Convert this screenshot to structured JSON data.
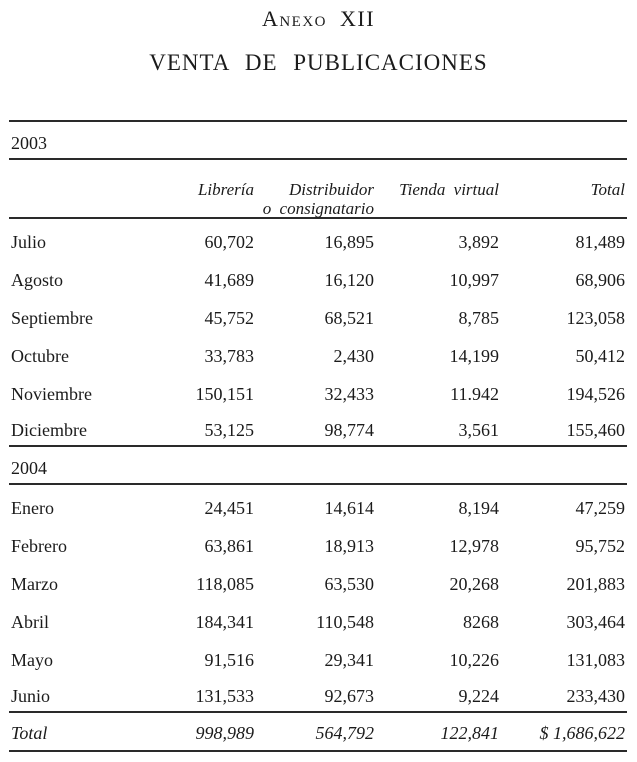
{
  "page": {
    "title": "Anexo XII",
    "subtitle": "VENTA DE PUBLICACIONES"
  },
  "table": {
    "header": {
      "col1": "Librería",
      "col2": "Distribuidor\no consignatario",
      "col3": "Tienda virtual",
      "col4": "Total"
    },
    "sections": [
      {
        "year": "2003",
        "rows": [
          {
            "label": "Julio",
            "v": [
              "60,702",
              "16,895",
              "3,892",
              "81,489"
            ]
          },
          {
            "label": "Agosto",
            "v": [
              "41,689",
              "16,120",
              "10,997",
              "68,906"
            ]
          },
          {
            "label": "Septiembre",
            "v": [
              "45,752",
              "68,521",
              "8,785",
              "123,058"
            ]
          },
          {
            "label": "Octubre",
            "v": [
              "33,783",
              "2,430",
              "14,199",
              "50,412"
            ]
          },
          {
            "label": "Noviembre",
            "v": [
              "150,151",
              "32,433",
              "11.942",
              "194,526"
            ]
          },
          {
            "label": "Diciembre",
            "v": [
              "53,125",
              "98,774",
              "3,561",
              "155,460"
            ]
          }
        ]
      },
      {
        "year": "2004",
        "rows": [
          {
            "label": "Enero",
            "v": [
              "24,451",
              "14,614",
              "8,194",
              "47,259"
            ]
          },
          {
            "label": "Febrero",
            "v": [
              "63,861",
              "18,913",
              "12,978",
              "95,752"
            ]
          },
          {
            "label": "Marzo",
            "v": [
              "118,085",
              "63,530",
              "20,268",
              "201,883"
            ]
          },
          {
            "label": "Abril",
            "v": [
              "184,341",
              "110,548",
              "8268",
              "303,464"
            ]
          },
          {
            "label": "Mayo",
            "v": [
              "91,516",
              "29,341",
              "10,226",
              "131,083"
            ]
          },
          {
            "label": "Junio",
            "v": [
              "131,533",
              "92,673",
              "9,224",
              "233,430"
            ]
          }
        ]
      }
    ],
    "total_row": {
      "label": "Total",
      "v": [
        "998,989",
        "564,792",
        "122,841",
        "$ 1,686,622"
      ]
    }
  }
}
